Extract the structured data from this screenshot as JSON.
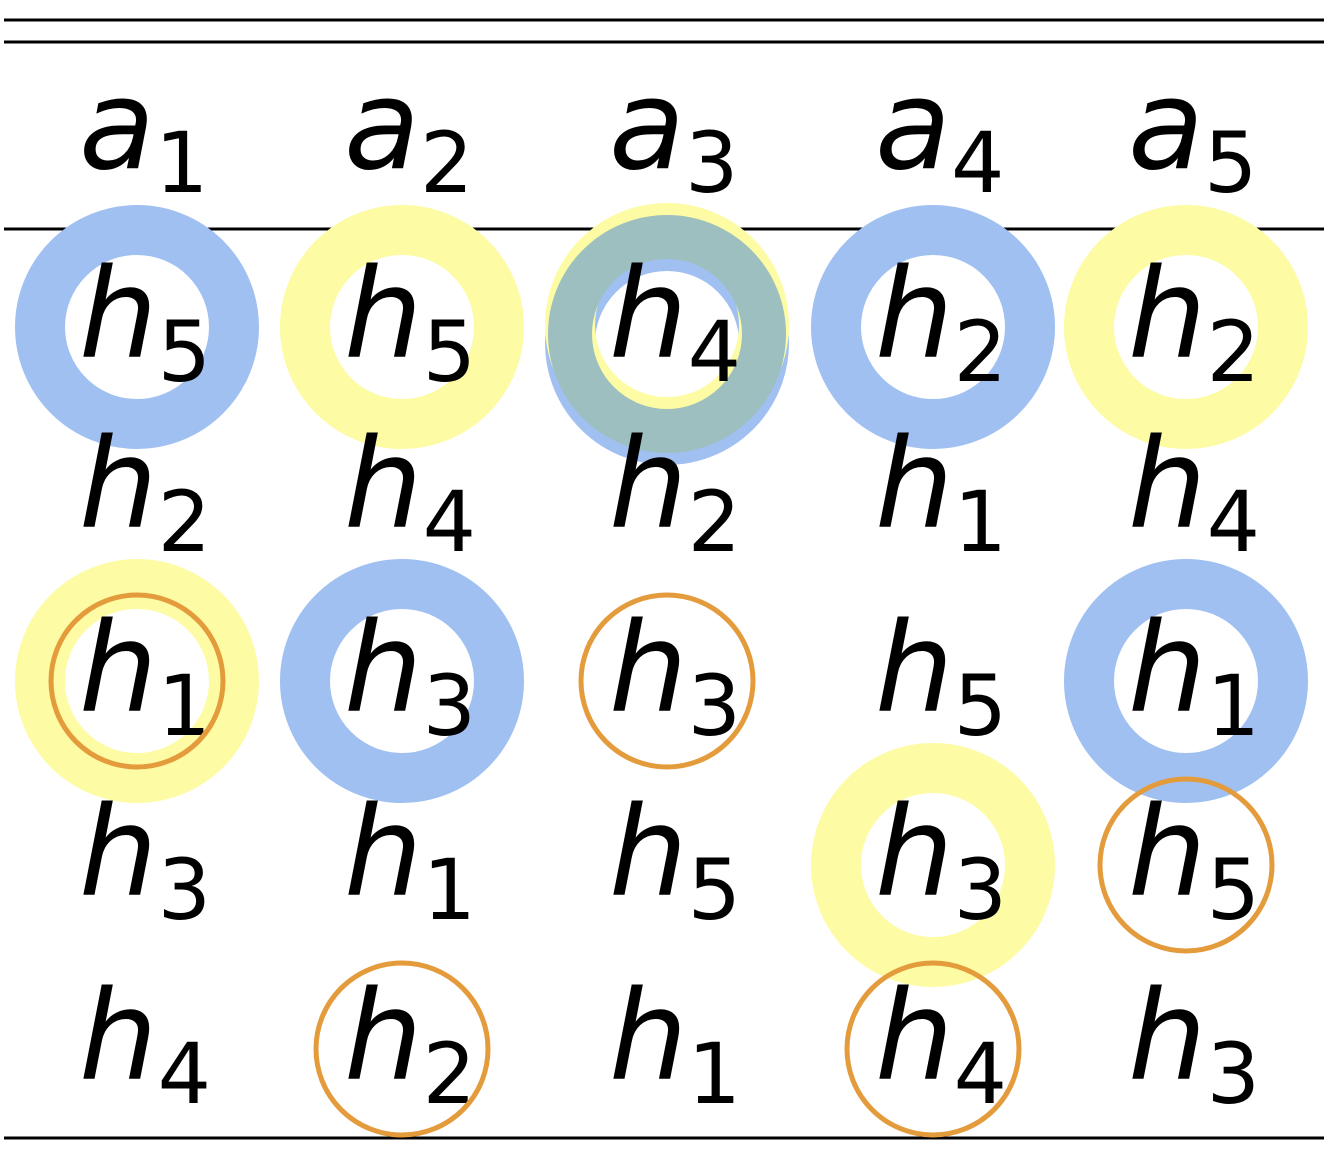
{
  "table": {
    "headers": [
      {
        "base": "a",
        "sub": "1"
      },
      {
        "base": "a",
        "sub": "2"
      },
      {
        "base": "a",
        "sub": "3"
      },
      {
        "base": "a",
        "sub": "4"
      },
      {
        "base": "a",
        "sub": "5"
      }
    ],
    "rows": [
      [
        {
          "base": "h",
          "sub": "5",
          "marks": [
            "blue"
          ]
        },
        {
          "base": "h",
          "sub": "5",
          "marks": [
            "yellow"
          ]
        },
        {
          "base": "h",
          "sub": "4",
          "marks": [
            "blue",
            "yellow"
          ]
        },
        {
          "base": "h",
          "sub": "2",
          "marks": [
            "blue"
          ]
        },
        {
          "base": "h",
          "sub": "2",
          "marks": [
            "yellow"
          ]
        }
      ],
      [
        {
          "base": "h",
          "sub": "2",
          "marks": []
        },
        {
          "base": "h",
          "sub": "4",
          "marks": []
        },
        {
          "base": "h",
          "sub": "2",
          "marks": []
        },
        {
          "base": "h",
          "sub": "1",
          "marks": []
        },
        {
          "base": "h",
          "sub": "4",
          "marks": []
        }
      ],
      [
        {
          "base": "h",
          "sub": "1",
          "marks": [
            "yellow",
            "orange"
          ]
        },
        {
          "base": "h",
          "sub": "3",
          "marks": [
            "blue"
          ]
        },
        {
          "base": "h",
          "sub": "3",
          "marks": [
            "orange"
          ]
        },
        {
          "base": "h",
          "sub": "5",
          "marks": []
        },
        {
          "base": "h",
          "sub": "1",
          "marks": [
            "blue"
          ]
        }
      ],
      [
        {
          "base": "h",
          "sub": "3",
          "marks": []
        },
        {
          "base": "h",
          "sub": "1",
          "marks": []
        },
        {
          "base": "h",
          "sub": "5",
          "marks": []
        },
        {
          "base": "h",
          "sub": "3",
          "marks": [
            "yellow"
          ]
        },
        {
          "base": "h",
          "sub": "5",
          "marks": [
            "orange"
          ]
        }
      ],
      [
        {
          "base": "h",
          "sub": "4",
          "marks": []
        },
        {
          "base": "h",
          "sub": "2",
          "marks": [
            "orange"
          ]
        },
        {
          "base": "h",
          "sub": "1",
          "marks": []
        },
        {
          "base": "h",
          "sub": "4",
          "marks": [
            "orange"
          ]
        },
        {
          "base": "h",
          "sub": "3",
          "marks": []
        }
      ]
    ]
  },
  "colors": {
    "blue": "#a0c0f2",
    "yellow": "#fdfba4",
    "orange": "#e49b3c",
    "rule": "#000000"
  }
}
